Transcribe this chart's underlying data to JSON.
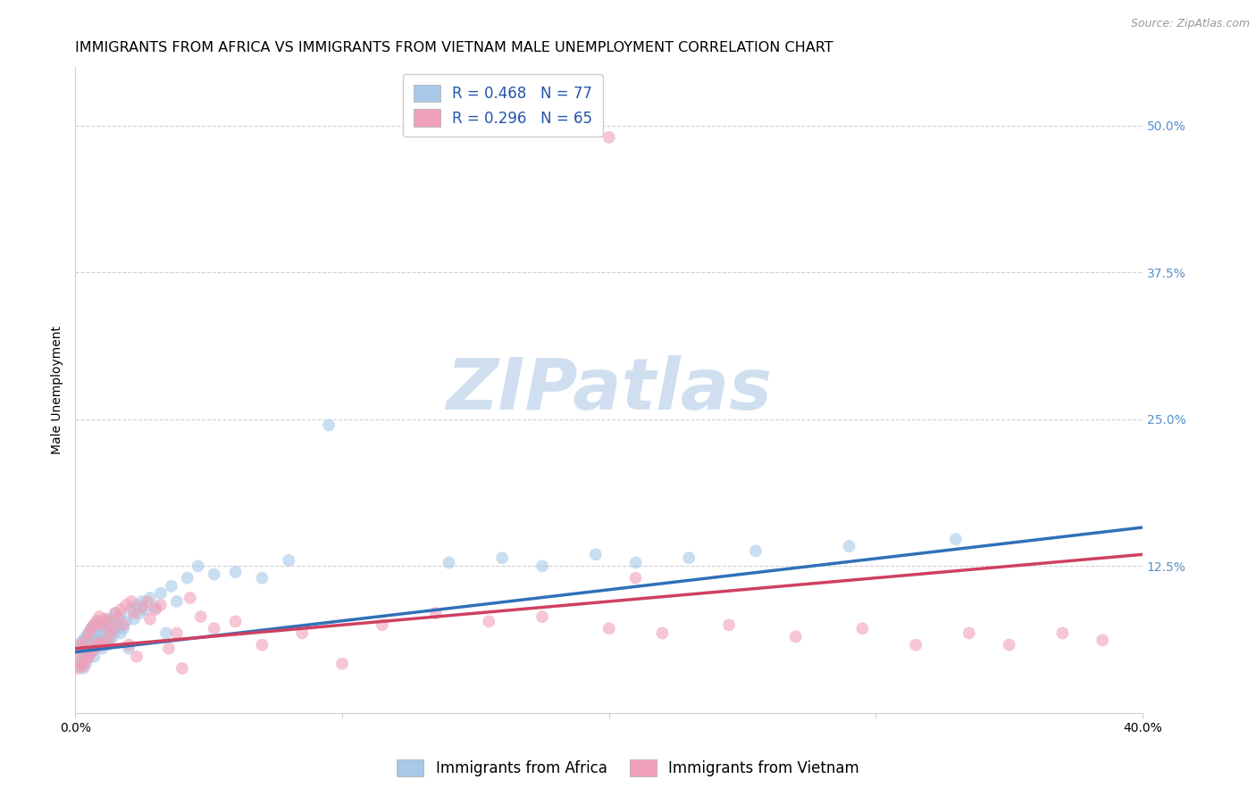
{
  "title": "IMMIGRANTS FROM AFRICA VS IMMIGRANTS FROM VIETNAM MALE UNEMPLOYMENT CORRELATION CHART",
  "source": "Source: ZipAtlas.com",
  "ylabel": "Male Unemployment",
  "yticks": [
    0.0,
    0.125,
    0.25,
    0.375,
    0.5
  ],
  "ytick_labels": [
    "",
    "12.5%",
    "25.0%",
    "37.5%",
    "50.0%"
  ],
  "xlim": [
    0.0,
    0.4
  ],
  "ylim": [
    0.0,
    0.55
  ],
  "watermark_text": "ZIPatlas",
  "series": [
    {
      "name": "Immigrants from Africa",
      "R": 0.468,
      "N": 77,
      "color": "#a8c8e8",
      "x": [
        0.001,
        0.001,
        0.002,
        0.002,
        0.002,
        0.003,
        0.003,
        0.003,
        0.003,
        0.004,
        0.004,
        0.004,
        0.005,
        0.005,
        0.005,
        0.006,
        0.006,
        0.006,
        0.007,
        0.007,
        0.007,
        0.007,
        0.008,
        0.008,
        0.008,
        0.008,
        0.009,
        0.009,
        0.009,
        0.01,
        0.01,
        0.01,
        0.011,
        0.011,
        0.012,
        0.012,
        0.012,
        0.013,
        0.013,
        0.014,
        0.014,
        0.015,
        0.015,
        0.016,
        0.017,
        0.017,
        0.018,
        0.019,
        0.02,
        0.021,
        0.022,
        0.023,
        0.024,
        0.025,
        0.026,
        0.028,
        0.03,
        0.032,
        0.034,
        0.036,
        0.038,
        0.042,
        0.046,
        0.052,
        0.06,
        0.07,
        0.08,
        0.095,
        0.14,
        0.16,
        0.175,
        0.195,
        0.21,
        0.23,
        0.255,
        0.29,
        0.33
      ],
      "y": [
        0.04,
        0.055,
        0.042,
        0.048,
        0.06,
        0.038,
        0.045,
        0.052,
        0.062,
        0.042,
        0.055,
        0.065,
        0.048,
        0.058,
        0.068,
        0.052,
        0.06,
        0.072,
        0.048,
        0.058,
        0.065,
        0.075,
        0.055,
        0.062,
        0.07,
        0.078,
        0.06,
        0.068,
        0.075,
        0.055,
        0.065,
        0.075,
        0.06,
        0.072,
        0.058,
        0.068,
        0.08,
        0.062,
        0.075,
        0.065,
        0.08,
        0.07,
        0.085,
        0.075,
        0.068,
        0.082,
        0.072,
        0.078,
        0.055,
        0.088,
        0.08,
        0.092,
        0.085,
        0.095,
        0.088,
        0.098,
        0.09,
        0.102,
        0.068,
        0.108,
        0.095,
        0.115,
        0.125,
        0.118,
        0.12,
        0.115,
        0.13,
        0.245,
        0.128,
        0.132,
        0.125,
        0.135,
        0.128,
        0.132,
        0.138,
        0.142,
        0.148
      ]
    },
    {
      "name": "Immigrants from Vietnam",
      "R": 0.296,
      "N": 65,
      "color": "#f0a0b8",
      "x": [
        0.001,
        0.001,
        0.002,
        0.002,
        0.003,
        0.003,
        0.004,
        0.004,
        0.005,
        0.005,
        0.006,
        0.006,
        0.007,
        0.007,
        0.008,
        0.008,
        0.009,
        0.009,
        0.01,
        0.01,
        0.011,
        0.012,
        0.012,
        0.013,
        0.014,
        0.015,
        0.016,
        0.017,
        0.018,
        0.019,
        0.02,
        0.021,
        0.022,
        0.023,
        0.025,
        0.027,
        0.028,
        0.03,
        0.032,
        0.035,
        0.038,
        0.04,
        0.043,
        0.047,
        0.052,
        0.06,
        0.07,
        0.085,
        0.1,
        0.115,
        0.135,
        0.155,
        0.175,
        0.2,
        0.22,
        0.245,
        0.27,
        0.295,
        0.315,
        0.335,
        0.35,
        0.37,
        0.385,
        0.2,
        0.21
      ],
      "y": [
        0.038,
        0.05,
        0.042,
        0.058,
        0.04,
        0.055,
        0.045,
        0.062,
        0.048,
        0.068,
        0.052,
        0.072,
        0.055,
        0.075,
        0.058,
        0.078,
        0.06,
        0.082,
        0.058,
        0.075,
        0.08,
        0.062,
        0.078,
        0.068,
        0.072,
        0.085,
        0.08,
        0.088,
        0.075,
        0.092,
        0.058,
        0.095,
        0.085,
        0.048,
        0.09,
        0.095,
        0.08,
        0.088,
        0.092,
        0.055,
        0.068,
        0.038,
        0.098,
        0.082,
        0.072,
        0.078,
        0.058,
        0.068,
        0.042,
        0.075,
        0.085,
        0.078,
        0.082,
        0.072,
        0.068,
        0.075,
        0.065,
        0.072,
        0.058,
        0.068,
        0.058,
        0.068,
        0.062,
        0.49,
        0.115
      ]
    }
  ],
  "trend_africa": {
    "x_start": 0.0,
    "x_end": 0.4,
    "y_start": 0.052,
    "y_end": 0.158,
    "color": "#3070b8",
    "linewidth": 2.5
  },
  "trend_vietnam": {
    "x_start": 0.0,
    "x_end": 0.4,
    "y_start": 0.055,
    "y_end": 0.135,
    "color": "#d04060",
    "linewidth": 2.5
  },
  "legend_R_Africa": "R = 0.468",
  "legend_N_Africa": "N = 77",
  "legend_R_Vietnam": "R = 0.296",
  "legend_N_Vietnam": "N = 65",
  "title_fontsize": 11.5,
  "axis_label_fontsize": 10,
  "tick_fontsize": 10,
  "legend_fontsize": 12,
  "watermark_fontsize": 58,
  "watermark_color": "#d0dff0",
  "background_color": "#ffffff",
  "grid_color": "#d0d0d0",
  "right_ytick_color": "#5590cc",
  "scatter_size": 100,
  "scatter_alpha": 0.6
}
